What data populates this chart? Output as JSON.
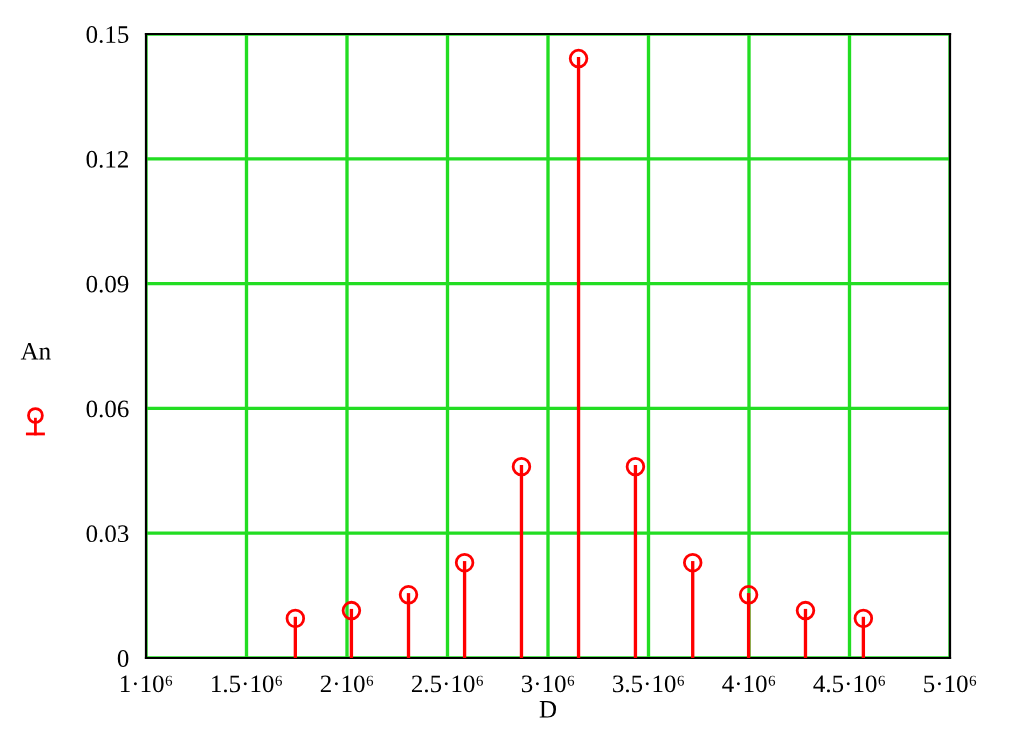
{
  "chart_data": {
    "type": "lollipop",
    "xlabel": "D",
    "ylabel": "An",
    "x": [
      1743000,
      2022000,
      2306000,
      2585000,
      2868000,
      3152000,
      3435000,
      3720000,
      3998000,
      4281000,
      4569000
    ],
    "series": [
      {
        "color": "#ff0000",
        "values": [
          0.0095,
          0.0114,
          0.0152,
          0.0229,
          0.046,
          0.1441,
          0.046,
          0.0229,
          0.0152,
          0.0114,
          0.0095
        ]
      }
    ],
    "xlim": [
      1000000,
      5000000
    ],
    "xticks": [
      {
        "value": 1000000,
        "label": "1·10⁶"
      },
      {
        "value": 1500000,
        "label": "1.5·10⁶"
      },
      {
        "value": 2000000,
        "label": "2·10⁶"
      },
      {
        "value": 2500000,
        "label": "2.5·10⁶"
      },
      {
        "value": 3000000,
        "label": "3·10⁶"
      },
      {
        "value": 3500000,
        "label": "3.5·10⁶"
      },
      {
        "value": 4000000,
        "label": "4·10⁶"
      },
      {
        "value": 4500000,
        "label": "4.5·10⁶"
      },
      {
        "value": 5000000,
        "label": "5·10⁶"
      }
    ],
    "ylim": [
      0,
      0.15
    ],
    "yticks": [
      0,
      0.03,
      0.06,
      0.09,
      0.12,
      0.15
    ],
    "grid": true,
    "marker": "circle"
  }
}
